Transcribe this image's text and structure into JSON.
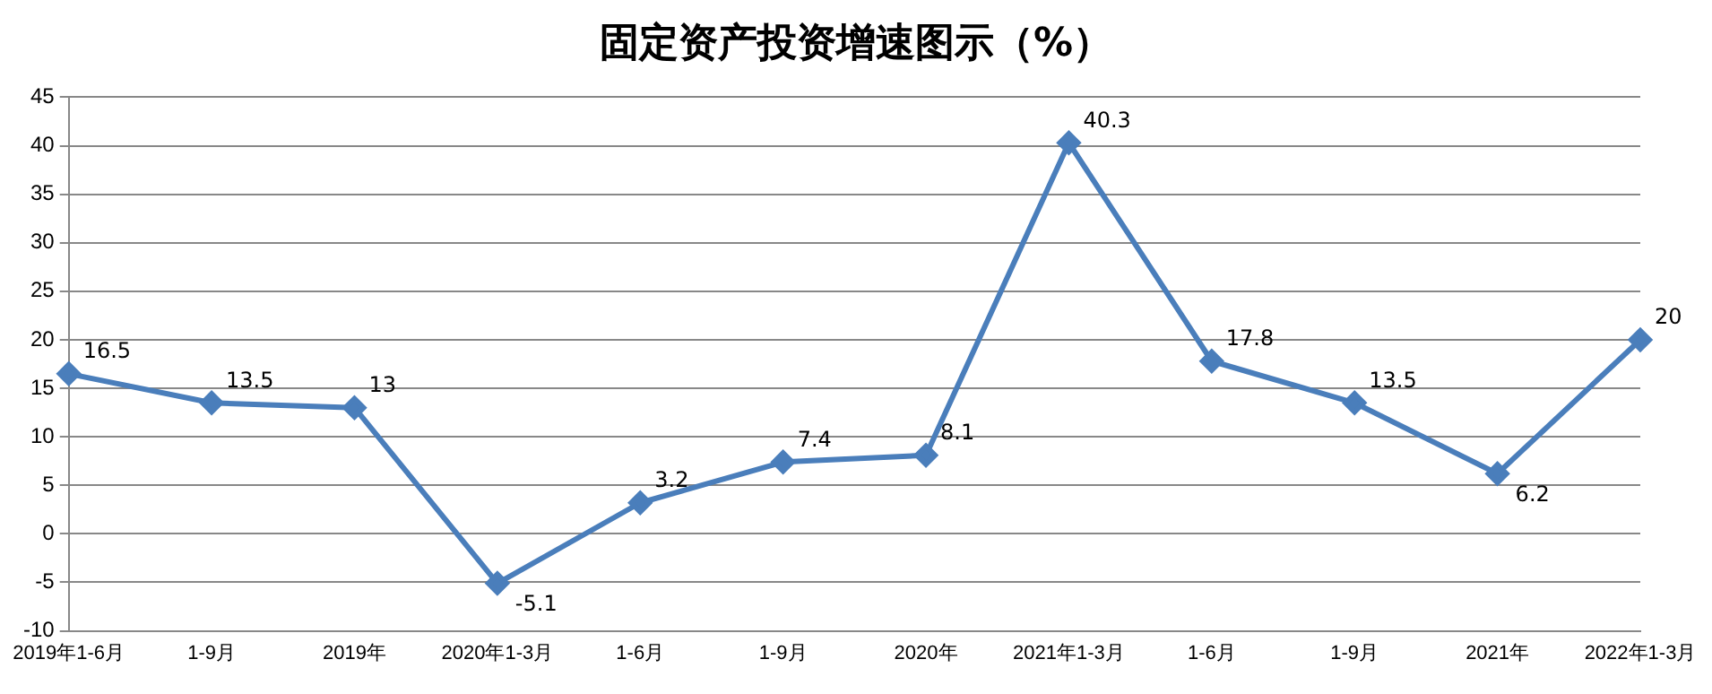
{
  "chart_data": {
    "type": "line",
    "title": "固定资产投资增速图示（%）",
    "categories": [
      "2019年1-6月",
      "1-9月",
      "2019年",
      "2020年1-3月",
      "1-6月",
      "1-9月",
      "2020年",
      "2021年1-3月",
      "1-6月",
      "1-9月",
      "2021年",
      "2022年1-3月"
    ],
    "series": [
      {
        "color": "#4a7ebb",
        "values": [
          16.5,
          13.5,
          13,
          -5.1,
          3.2,
          7.4,
          8.1,
          40.3,
          17.8,
          13.5,
          6.2,
          20
        ]
      }
    ],
    "ylim": [
      -10,
      45
    ],
    "yticks": [
      -10,
      -5,
      0,
      5,
      10,
      15,
      20,
      25,
      30,
      35,
      40,
      45
    ],
    "grid": "y",
    "legend": false,
    "marker": "diamond",
    "line_style": "solid",
    "data_labels": true
  }
}
